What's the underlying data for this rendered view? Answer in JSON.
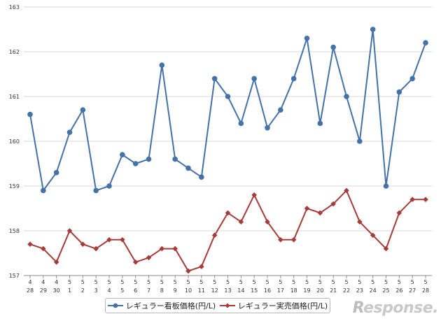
{
  "chart_data": {
    "type": "line",
    "ylim": [
      157,
      163
    ],
    "y_ticks": [
      "157",
      "158",
      "159",
      "160",
      "161",
      "162",
      "163"
    ],
    "grid": true,
    "legend_position": "bottom",
    "x": [
      {
        "month": "4",
        "day": "28"
      },
      {
        "month": "4",
        "day": "29"
      },
      {
        "month": "4",
        "day": "30"
      },
      {
        "month": "5",
        "day": "1"
      },
      {
        "month": "5",
        "day": "2"
      },
      {
        "month": "5",
        "day": "3"
      },
      {
        "month": "5",
        "day": "4"
      },
      {
        "month": "5",
        "day": "5"
      },
      {
        "month": "5",
        "day": "6"
      },
      {
        "month": "5",
        "day": "7"
      },
      {
        "month": "5",
        "day": "8"
      },
      {
        "month": "5",
        "day": "9"
      },
      {
        "month": "5",
        "day": "10"
      },
      {
        "month": "5",
        "day": "11"
      },
      {
        "month": "5",
        "day": "12"
      },
      {
        "month": "5",
        "day": "13"
      },
      {
        "month": "5",
        "day": "14"
      },
      {
        "month": "5",
        "day": "15"
      },
      {
        "month": "5",
        "day": "16"
      },
      {
        "month": "5",
        "day": "17"
      },
      {
        "month": "5",
        "day": "18"
      },
      {
        "month": "5",
        "day": "19"
      },
      {
        "month": "5",
        "day": "20"
      },
      {
        "month": "5",
        "day": "21"
      },
      {
        "month": "5",
        "day": "22"
      },
      {
        "month": "5",
        "day": "23"
      },
      {
        "month": "5",
        "day": "24"
      },
      {
        "month": "5",
        "day": "25"
      },
      {
        "month": "5",
        "day": "26"
      },
      {
        "month": "5",
        "day": "27"
      },
      {
        "month": "5",
        "day": "28"
      }
    ],
    "series": [
      {
        "name": "レギュラー看板価格(円/L)",
        "color": "#4472a8",
        "marker": "circle",
        "values": [
          160.6,
          158.9,
          159.3,
          160.2,
          160.7,
          158.9,
          159.0,
          159.7,
          159.5,
          159.6,
          161.7,
          159.6,
          159.4,
          159.2,
          161.4,
          161.0,
          160.4,
          161.4,
          160.3,
          160.7,
          161.4,
          162.3,
          160.4,
          162.1,
          161.0,
          160.0,
          162.5,
          159.0,
          161.1,
          161.4,
          162.2
        ]
      },
      {
        "name": "レギュラー実売価格(円/L)",
        "color": "#a63c3a",
        "marker": "diamond",
        "values": [
          157.7,
          157.6,
          157.3,
          158.0,
          157.7,
          157.6,
          157.8,
          157.8,
          157.3,
          157.4,
          157.6,
          157.6,
          157.1,
          157.2,
          157.9,
          158.4,
          158.2,
          158.8,
          158.2,
          157.8,
          157.8,
          158.5,
          158.4,
          158.6,
          158.9,
          158.2,
          157.9,
          157.6,
          158.4,
          158.7,
          158.7
        ]
      }
    ]
  },
  "watermark": {
    "prefix": "R",
    "rest": "esponse."
  },
  "colors": {
    "grid": "#d9d9d9",
    "axis": "#8c8c8c"
  }
}
